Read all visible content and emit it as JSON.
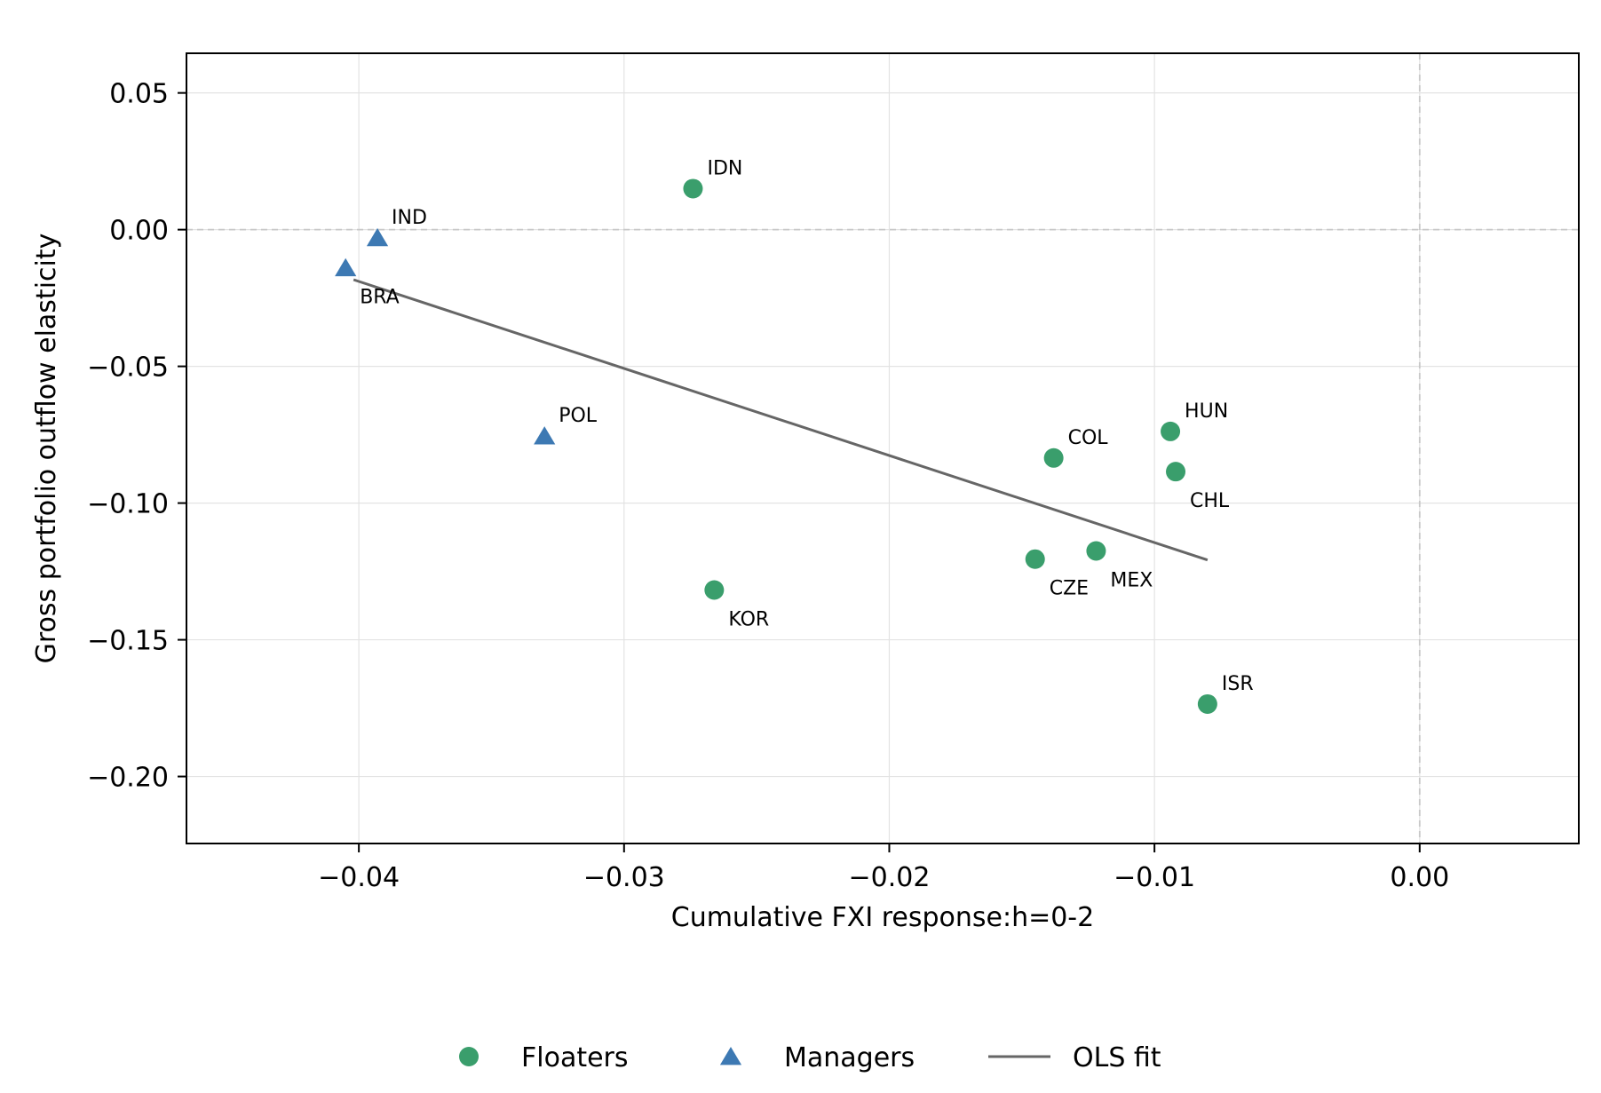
{
  "chart_data": {
    "type": "scatter",
    "xlabel": "Cumulative FXI response:h=0-2",
    "ylabel": "Gross portfolio outflow elasticity",
    "xlim": [
      -0.0465,
      0.006
    ],
    "ylim": [
      -0.2245,
      0.0645
    ],
    "xticks": [
      -0.04,
      -0.03,
      -0.02,
      -0.01,
      0.0
    ],
    "xtick_labels": [
      "−0.04",
      "−0.03",
      "−0.02",
      "−0.01",
      "0.00"
    ],
    "yticks": [
      0.05,
      0.0,
      -0.05,
      -0.1,
      -0.15,
      -0.2
    ],
    "ytick_labels": [
      "0.05",
      "0.00",
      "−0.05",
      "−0.10",
      "−0.15",
      "−0.20"
    ],
    "grid": true,
    "reference_lines": {
      "x": 0.0,
      "y": 0.0,
      "style": "dashed"
    },
    "legend": {
      "placement": "bottom-center"
    },
    "series": [
      {
        "name": "Floaters",
        "marker": "circle",
        "color": "#3a9e6c",
        "points": [
          {
            "label": "IDN",
            "x": -0.0274,
            "y": 0.015,
            "label_pos": "above"
          },
          {
            "label": "COL",
            "x": -0.0138,
            "y": -0.0835,
            "label_pos": "above"
          },
          {
            "label": "HUN",
            "x": -0.0094,
            "y": -0.0738,
            "label_pos": "above"
          },
          {
            "label": "CHL",
            "x": -0.0092,
            "y": -0.0885,
            "label_pos": "below"
          },
          {
            "label": "CZE",
            "x": -0.0145,
            "y": -0.1205,
            "label_pos": "below"
          },
          {
            "label": "MEX",
            "x": -0.0122,
            "y": -0.1175,
            "label_pos": "below"
          },
          {
            "label": "KOR",
            "x": -0.0266,
            "y": -0.1318,
            "label_pos": "below"
          },
          {
            "label": "ISR",
            "x": -0.008,
            "y": -0.1735,
            "label_pos": "above"
          }
        ]
      },
      {
        "name": "Managers",
        "marker": "triangle",
        "color": "#3d79b3",
        "points": [
          {
            "label": "IND",
            "x": -0.0393,
            "y": -0.003,
            "label_pos": "above"
          },
          {
            "label": "BRA",
            "x": -0.0405,
            "y": -0.014,
            "label_pos": "below"
          },
          {
            "label": "POL",
            "x": -0.033,
            "y": -0.0755,
            "label_pos": "above"
          }
        ]
      }
    ],
    "fit": {
      "name": "OLS fit",
      "color": "#666666",
      "x": [
        -0.0402,
        -0.008
      ],
      "y": [
        -0.0183,
        -0.1208
      ]
    }
  }
}
